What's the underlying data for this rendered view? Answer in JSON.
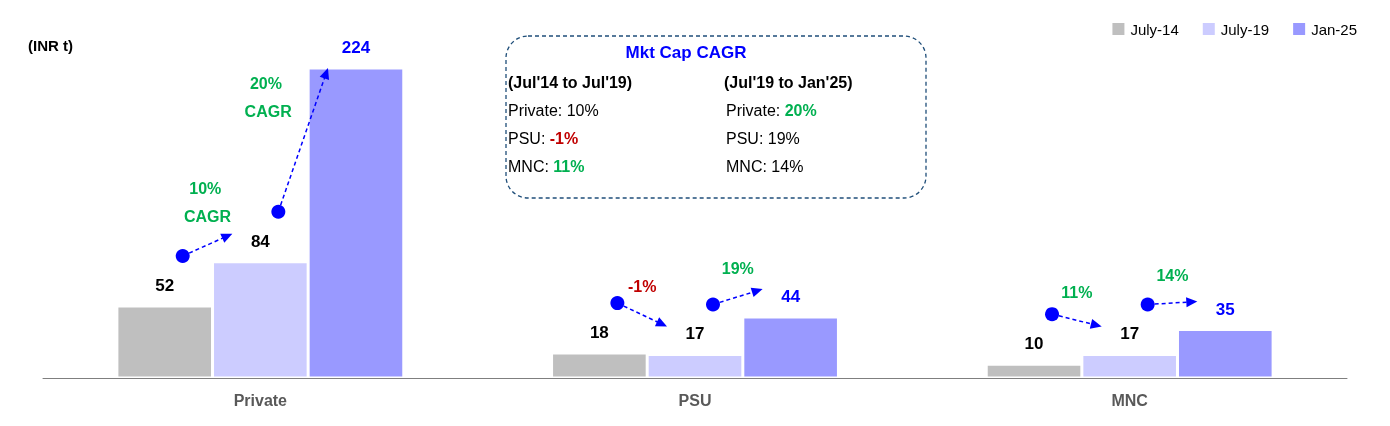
{
  "chart_data": {
    "type": "bar",
    "ylabel": "(INR t)",
    "categories": [
      "Private",
      "PSU",
      "MNC"
    ],
    "series": [
      {
        "name": "July-14",
        "color": "#bfbfbf",
        "values": [
          52,
          18,
          10
        ]
      },
      {
        "name": "July-19",
        "color": "#ccccff",
        "values": [
          84,
          17,
          17
        ]
      },
      {
        "name": "Jan-25",
        "color": "#9999ff",
        "values": [
          224,
          44,
          35
        ]
      }
    ],
    "data_labels": true,
    "legend": "top right",
    "annotations": [
      "Mkt Cap CAGR",
      "(Jul'14 to Jul'19)",
      "Private: 10%",
      "PSU: -1%",
      "MNC: 11%",
      "(Jul'19 to Jan'25)",
      "Private: 20%",
      "PSU: 19%",
      "MNC: 14%",
      "10% CAGR",
      "20% CAGR",
      "-1%",
      "19%",
      "11%",
      "14%"
    ]
  }
}
